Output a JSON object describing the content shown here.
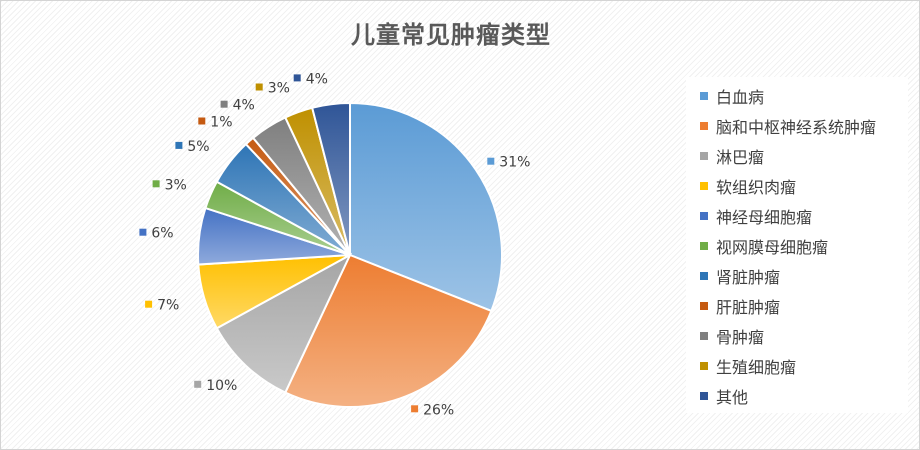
{
  "chart_data": {
    "type": "pie",
    "title": "儿童常见肿瘤类型",
    "legend_position": "right",
    "slices": [
      {
        "name": "白血病",
        "value": 31,
        "label": "31%",
        "color": "#5B9BD5"
      },
      {
        "name": "脑和中枢神经系统肿瘤",
        "value": 26,
        "label": "26%",
        "color": "#ED7D31"
      },
      {
        "name": "淋巴瘤",
        "value": 10,
        "label": "10%",
        "color": "#A5A5A5"
      },
      {
        "name": "软组织肉瘤",
        "value": 7,
        "label": "7%",
        "color": "#FFC000"
      },
      {
        "name": "神经母细胞瘤",
        "value": 6,
        "label": "6%",
        "color": "#4472C4"
      },
      {
        "name": "视网膜母细胞瘤",
        "value": 3,
        "label": "3%",
        "color": "#70AD47"
      },
      {
        "name": "肾脏肿瘤",
        "value": 5,
        "label": "5%",
        "color": "#2E75B6"
      },
      {
        "name": "肝脏肿瘤",
        "value": 1,
        "label": "1%",
        "color": "#C55A11"
      },
      {
        "name": "骨肿瘤",
        "value": 4,
        "label": "4%",
        "color": "#7F7F7F"
      },
      {
        "name": "生殖细胞瘤",
        "value": 3,
        "label": "3%",
        "color": "#BF9000"
      },
      {
        "name": "其他",
        "value": 4,
        "label": "4%",
        "color": "#2F5597"
      }
    ]
  }
}
